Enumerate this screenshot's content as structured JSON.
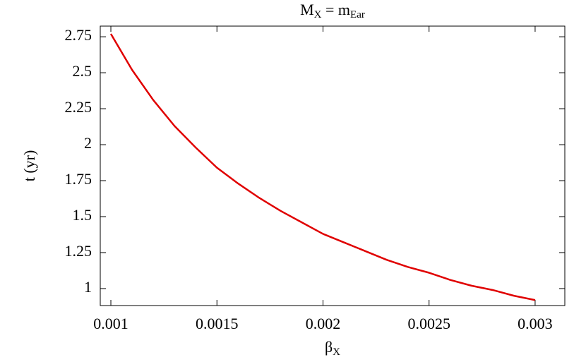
{
  "chart_data": {
    "type": "line",
    "title": [
      "M",
      "X",
      " = m",
      "Ear"
    ],
    "xlabel": [
      "β",
      "X"
    ],
    "ylabel": "t (yr)",
    "x": [
      0.001,
      0.0011,
      0.0012,
      0.0013,
      0.0014,
      0.0015,
      0.0016,
      0.0017,
      0.0018,
      0.0019,
      0.002,
      0.0021,
      0.0022,
      0.0023,
      0.0024,
      0.0025,
      0.0026,
      0.0027,
      0.0028,
      0.0029,
      0.003
    ],
    "series": [
      {
        "color": "#e00000",
        "values": [
          2.77,
          2.52,
          2.31,
          2.13,
          1.98,
          1.84,
          1.73,
          1.63,
          1.54,
          1.46,
          1.38,
          1.32,
          1.26,
          1.2,
          1.15,
          1.11,
          1.06,
          1.02,
          0.99,
          0.95,
          0.92
        ]
      }
    ],
    "xlim": [
      0.00095,
      0.00314
    ],
    "ylim": [
      0.882,
      2.824
    ],
    "xticks": [
      0.001,
      0.0015,
      0.002,
      0.0025,
      0.003
    ],
    "yticks": [
      1,
      1.25,
      1.5,
      1.75,
      2,
      2.25,
      2.5,
      2.75
    ]
  }
}
